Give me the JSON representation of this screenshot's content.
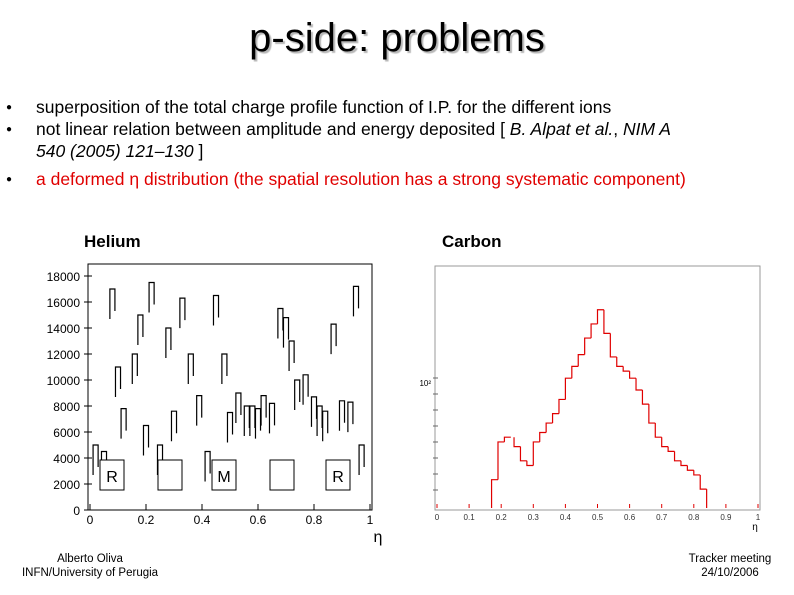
{
  "slide": {
    "title": "p-side: problems",
    "bullets": [
      {
        "text": "superposition of the total charge profile function of I.P. for the different ions",
        "color": "#000000"
      },
      {
        "text_pre": "not linear relation between amplitude and energy deposited [ ",
        "text_ital": "B. Alpat et al.",
        "text_mid": ", ",
        "text_ital2": "NIM A 540 (2005) 121–130",
        "text_post": " ]",
        "color": "#000000"
      },
      {
        "text": "a deformed η distribution (the spatial resolution has a strong systematic component)",
        "color": "#e00000"
      }
    ],
    "bullet2_line1_pre": "not linear relation between amplitude and energy deposited [ ",
    "bullet2_line1_ital": "B. Alpat et al.",
    "bullet2_line1_mid": ", ",
    "bullet2_line1_ital2": "NIM A",
    "bullet2_line2_ital": "540 (2005) 121–130",
    "bullet2_line2_post": " ]"
  },
  "chart_data": [
    {
      "type": "histogram",
      "title": "Helium",
      "xlabel": "η",
      "xlim": [
        0,
        1
      ],
      "ylim": [
        0,
        18000
      ],
      "x_ticks": [
        "0",
        "0.2",
        "0.4",
        "0.6",
        "0.8",
        "1"
      ],
      "y_ticks": [
        "0",
        "2000",
        "4000",
        "6000",
        "8000",
        "10000",
        "12000",
        "14000",
        "16000",
        "18000"
      ],
      "boxes": [
        "R",
        "M",
        "R"
      ],
      "line_color": "#000000",
      "steps": [
        [
          0.02,
          5000
        ],
        [
          0.05,
          4500
        ],
        [
          0.08,
          17000
        ],
        [
          0.1,
          11000
        ],
        [
          0.12,
          7800
        ],
        [
          0.16,
          12000
        ],
        [
          0.18,
          15000
        ],
        [
          0.2,
          6500
        ],
        [
          0.22,
          17500
        ],
        [
          0.25,
          5000
        ],
        [
          0.28,
          14000
        ],
        [
          0.3,
          7600
        ],
        [
          0.33,
          16300
        ],
        [
          0.36,
          12000
        ],
        [
          0.39,
          8800
        ],
        [
          0.42,
          4500
        ],
        [
          0.45,
          16500
        ],
        [
          0.48,
          12000
        ],
        [
          0.5,
          7500
        ],
        [
          0.53,
          9000
        ],
        [
          0.56,
          8000
        ],
        [
          0.58,
          8000
        ],
        [
          0.6,
          7800
        ],
        [
          0.62,
          8800
        ],
        [
          0.65,
          8200
        ],
        [
          0.68,
          15500
        ],
        [
          0.7,
          14800
        ],
        [
          0.72,
          13000
        ],
        [
          0.74,
          10000
        ],
        [
          0.77,
          10400
        ],
        [
          0.8,
          8700
        ],
        [
          0.82,
          8000
        ],
        [
          0.84,
          7600
        ],
        [
          0.87,
          14300
        ],
        [
          0.9,
          8400
        ],
        [
          0.93,
          8300
        ],
        [
          0.95,
          17200
        ],
        [
          0.97,
          5000
        ]
      ]
    },
    {
      "type": "histogram",
      "title": "Carbon",
      "xlabel": "η",
      "xlim": [
        0,
        1
      ],
      "y_tick_labels": [
        "10²"
      ],
      "x_ticks": [
        "0",
        "0.1",
        "0.2",
        "0.3",
        "0.4",
        "0.5",
        "0.6",
        "0.7",
        "0.8",
        "0.9",
        "1"
      ],
      "line_color": "#e00000",
      "steps": [
        [
          0.18,
          0.12
        ],
        [
          0.2,
          0.28
        ],
        [
          0.22,
          0.3
        ],
        [
          0.25,
          0.26
        ],
        [
          0.27,
          0.2
        ],
        [
          0.29,
          0.18
        ],
        [
          0.31,
          0.28
        ],
        [
          0.33,
          0.32
        ],
        [
          0.35,
          0.36
        ],
        [
          0.37,
          0.4
        ],
        [
          0.39,
          0.46
        ],
        [
          0.41,
          0.55
        ],
        [
          0.43,
          0.6
        ],
        [
          0.45,
          0.65
        ],
        [
          0.47,
          0.72
        ],
        [
          0.49,
          0.78
        ],
        [
          0.51,
          0.84
        ],
        [
          0.53,
          0.74
        ],
        [
          0.55,
          0.64
        ],
        [
          0.57,
          0.6
        ],
        [
          0.59,
          0.58
        ],
        [
          0.61,
          0.55
        ],
        [
          0.63,
          0.5
        ],
        [
          0.65,
          0.44
        ],
        [
          0.67,
          0.36
        ],
        [
          0.69,
          0.3
        ],
        [
          0.71,
          0.26
        ],
        [
          0.73,
          0.24
        ],
        [
          0.75,
          0.2
        ],
        [
          0.77,
          0.18
        ],
        [
          0.79,
          0.16
        ],
        [
          0.81,
          0.14
        ],
        [
          0.83,
          0.08
        ]
      ]
    }
  ],
  "footer": {
    "left_line1": "Alberto Oliva",
    "left_line2": "INFN/University of Perugia",
    "right_line1": "Tracker meeting",
    "right_line2": "24/10/2006"
  }
}
